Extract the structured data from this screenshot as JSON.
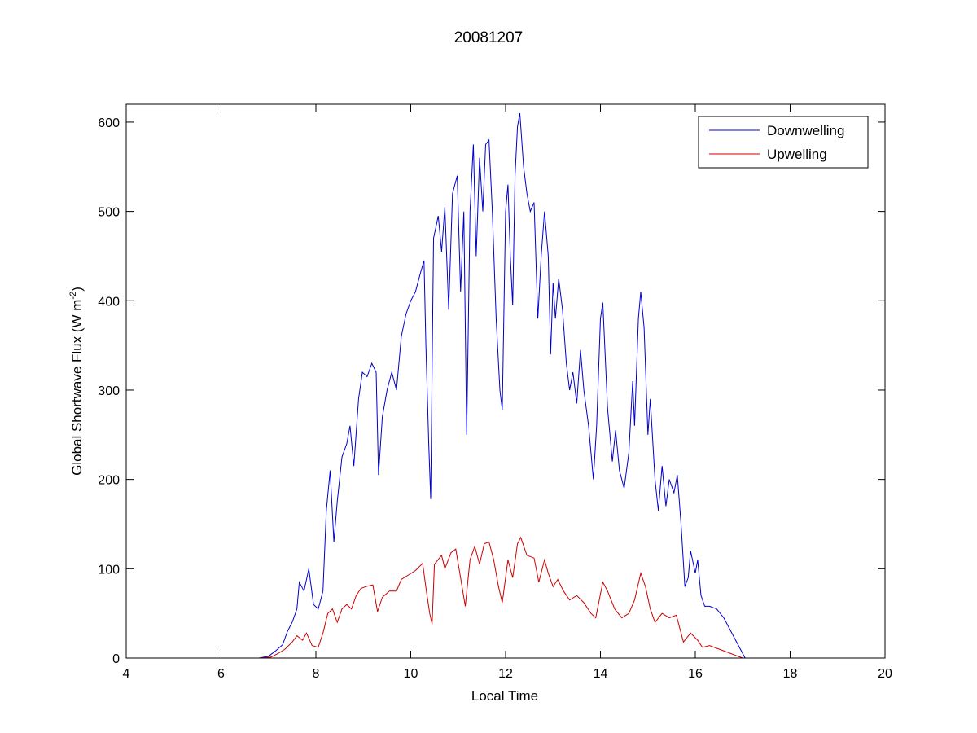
{
  "chart_data": {
    "type": "line",
    "title": "20081207",
    "xlabel": "Local Time",
    "ylabel": "Global Shortwave Flux (W m",
    "ylabel_superscript": "-2",
    "ylabel_suffix": ")",
    "xlim": [
      4,
      20
    ],
    "ylim": [
      0,
      620
    ],
    "xticks": [
      4,
      6,
      8,
      10,
      12,
      14,
      16,
      18,
      20
    ],
    "yticks": [
      0,
      100,
      200,
      300,
      400,
      500,
      600
    ],
    "grid": false,
    "legend_position": "top-right",
    "series": [
      {
        "name": "Downwelling",
        "color": "#0000cc",
        "points": [
          [
            4.2,
            0
          ],
          [
            4.8,
            0
          ],
          [
            6.8,
            0
          ],
          [
            7.0,
            2
          ],
          [
            7.15,
            8
          ],
          [
            7.3,
            15
          ],
          [
            7.4,
            30
          ],
          [
            7.5,
            40
          ],
          [
            7.6,
            55
          ],
          [
            7.65,
            85
          ],
          [
            7.75,
            75
          ],
          [
            7.85,
            100
          ],
          [
            7.95,
            60
          ],
          [
            8.05,
            55
          ],
          [
            8.15,
            75
          ],
          [
            8.22,
            165
          ],
          [
            8.3,
            210
          ],
          [
            8.38,
            130
          ],
          [
            8.45,
            175
          ],
          [
            8.55,
            225
          ],
          [
            8.65,
            240
          ],
          [
            8.72,
            260
          ],
          [
            8.8,
            215
          ],
          [
            8.9,
            290
          ],
          [
            8.98,
            320
          ],
          [
            9.08,
            315
          ],
          [
            9.18,
            330
          ],
          [
            9.27,
            320
          ],
          [
            9.32,
            205
          ],
          [
            9.4,
            270
          ],
          [
            9.5,
            300
          ],
          [
            9.6,
            320
          ],
          [
            9.7,
            300
          ],
          [
            9.8,
            360
          ],
          [
            9.9,
            385
          ],
          [
            10.0,
            400
          ],
          [
            10.1,
            410
          ],
          [
            10.2,
            430
          ],
          [
            10.28,
            445
          ],
          [
            10.32,
            350
          ],
          [
            10.38,
            240
          ],
          [
            10.42,
            178
          ],
          [
            10.48,
            470
          ],
          [
            10.58,
            495
          ],
          [
            10.65,
            455
          ],
          [
            10.72,
            505
          ],
          [
            10.8,
            390
          ],
          [
            10.88,
            520
          ],
          [
            10.98,
            540
          ],
          [
            11.05,
            410
          ],
          [
            11.12,
            500
          ],
          [
            11.18,
            250
          ],
          [
            11.25,
            500
          ],
          [
            11.32,
            575
          ],
          [
            11.38,
            450
          ],
          [
            11.45,
            560
          ],
          [
            11.52,
            500
          ],
          [
            11.58,
            575
          ],
          [
            11.65,
            580
          ],
          [
            11.72,
            500
          ],
          [
            11.8,
            380
          ],
          [
            11.88,
            300
          ],
          [
            11.93,
            278
          ],
          [
            12.0,
            500
          ],
          [
            12.05,
            530
          ],
          [
            12.1,
            450
          ],
          [
            12.15,
            395
          ],
          [
            12.2,
            540
          ],
          [
            12.25,
            595
          ],
          [
            12.3,
            610
          ],
          [
            12.38,
            550
          ],
          [
            12.45,
            520
          ],
          [
            12.52,
            500
          ],
          [
            12.6,
            510
          ],
          [
            12.68,
            380
          ],
          [
            12.75,
            450
          ],
          [
            12.82,
            500
          ],
          [
            12.9,
            450
          ],
          [
            12.95,
            340
          ],
          [
            13.0,
            420
          ],
          [
            13.05,
            380
          ],
          [
            13.12,
            425
          ],
          [
            13.2,
            390
          ],
          [
            13.28,
            330
          ],
          [
            13.35,
            300
          ],
          [
            13.42,
            320
          ],
          [
            13.5,
            285
          ],
          [
            13.58,
            345
          ],
          [
            13.65,
            300
          ],
          [
            13.75,
            260
          ],
          [
            13.85,
            200
          ],
          [
            13.92,
            260
          ],
          [
            14.0,
            380
          ],
          [
            14.05,
            398
          ],
          [
            14.15,
            280
          ],
          [
            14.25,
            220
          ],
          [
            14.32,
            255
          ],
          [
            14.4,
            210
          ],
          [
            14.5,
            190
          ],
          [
            14.6,
            230
          ],
          [
            14.68,
            310
          ],
          [
            14.72,
            260
          ],
          [
            14.8,
            380
          ],
          [
            14.85,
            410
          ],
          [
            14.92,
            370
          ],
          [
            15.0,
            250
          ],
          [
            15.05,
            290
          ],
          [
            15.15,
            200
          ],
          [
            15.22,
            165
          ],
          [
            15.3,
            215
          ],
          [
            15.38,
            170
          ],
          [
            15.45,
            200
          ],
          [
            15.55,
            185
          ],
          [
            15.62,
            205
          ],
          [
            15.7,
            150
          ],
          [
            15.78,
            80
          ],
          [
            15.85,
            90
          ],
          [
            15.9,
            120
          ],
          [
            16.0,
            95
          ],
          [
            16.05,
            110
          ],
          [
            16.12,
            70
          ],
          [
            16.2,
            58
          ],
          [
            16.3,
            58
          ],
          [
            16.45,
            55
          ],
          [
            16.6,
            45
          ],
          [
            16.75,
            30
          ],
          [
            16.9,
            15
          ],
          [
            17.05,
            0
          ]
        ]
      },
      {
        "name": "Upwelling",
        "color": "#cc0000",
        "points": [
          [
            4.2,
            0
          ],
          [
            4.8,
            0
          ],
          [
            6.8,
            0
          ],
          [
            7.05,
            1
          ],
          [
            7.2,
            5
          ],
          [
            7.35,
            10
          ],
          [
            7.5,
            18
          ],
          [
            7.6,
            25
          ],
          [
            7.72,
            20
          ],
          [
            7.8,
            28
          ],
          [
            7.92,
            14
          ],
          [
            8.05,
            12
          ],
          [
            8.15,
            28
          ],
          [
            8.25,
            50
          ],
          [
            8.35,
            55
          ],
          [
            8.45,
            40
          ],
          [
            8.55,
            55
          ],
          [
            8.65,
            60
          ],
          [
            8.75,
            55
          ],
          [
            8.85,
            70
          ],
          [
            8.95,
            78
          ],
          [
            9.05,
            80
          ],
          [
            9.2,
            82
          ],
          [
            9.3,
            52
          ],
          [
            9.4,
            68
          ],
          [
            9.55,
            75
          ],
          [
            9.7,
            75
          ],
          [
            9.8,
            88
          ],
          [
            9.95,
            93
          ],
          [
            10.1,
            98
          ],
          [
            10.25,
            106
          ],
          [
            10.33,
            75
          ],
          [
            10.4,
            50
          ],
          [
            10.45,
            38
          ],
          [
            10.5,
            105
          ],
          [
            10.65,
            115
          ],
          [
            10.72,
            100
          ],
          [
            10.85,
            118
          ],
          [
            10.95,
            122
          ],
          [
            11.05,
            90
          ],
          [
            11.15,
            58
          ],
          [
            11.25,
            110
          ],
          [
            11.35,
            125
          ],
          [
            11.45,
            105
          ],
          [
            11.55,
            128
          ],
          [
            11.65,
            130
          ],
          [
            11.75,
            110
          ],
          [
            11.85,
            80
          ],
          [
            11.93,
            62
          ],
          [
            12.05,
            110
          ],
          [
            12.15,
            90
          ],
          [
            12.25,
            128
          ],
          [
            12.32,
            135
          ],
          [
            12.45,
            115
          ],
          [
            12.6,
            112
          ],
          [
            12.7,
            85
          ],
          [
            12.82,
            110
          ],
          [
            12.9,
            95
          ],
          [
            13.0,
            80
          ],
          [
            13.1,
            88
          ],
          [
            13.22,
            75
          ],
          [
            13.35,
            65
          ],
          [
            13.5,
            70
          ],
          [
            13.65,
            62
          ],
          [
            13.8,
            50
          ],
          [
            13.9,
            45
          ],
          [
            14.05,
            85
          ],
          [
            14.15,
            75
          ],
          [
            14.3,
            55
          ],
          [
            14.45,
            45
          ],
          [
            14.6,
            50
          ],
          [
            14.72,
            65
          ],
          [
            14.85,
            95
          ],
          [
            14.95,
            80
          ],
          [
            15.05,
            55
          ],
          [
            15.15,
            40
          ],
          [
            15.3,
            50
          ],
          [
            15.45,
            45
          ],
          [
            15.6,
            48
          ],
          [
            15.75,
            18
          ],
          [
            15.9,
            28
          ],
          [
            16.05,
            20
          ],
          [
            16.15,
            12
          ],
          [
            16.3,
            14
          ],
          [
            16.5,
            10
          ],
          [
            16.7,
            6
          ],
          [
            16.9,
            2
          ],
          [
            17.0,
            0
          ]
        ]
      }
    ]
  }
}
